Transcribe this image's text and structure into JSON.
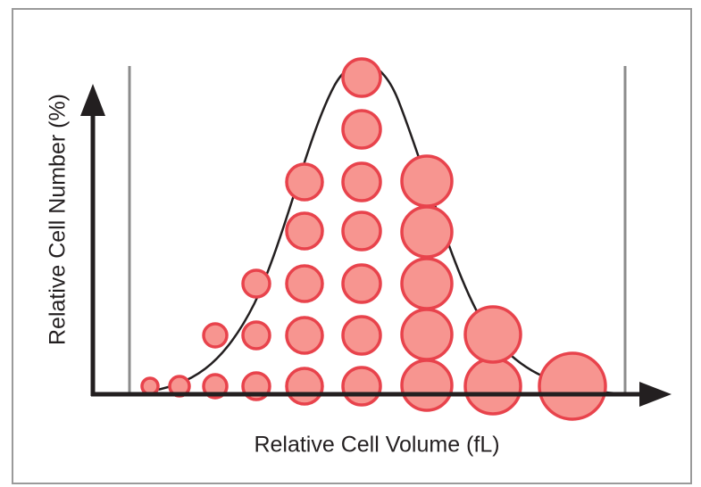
{
  "labels": {
    "y_axis": "Relative Cell Number (%)",
    "x_axis": "Relative Cell Volume (fL)"
  }
}
